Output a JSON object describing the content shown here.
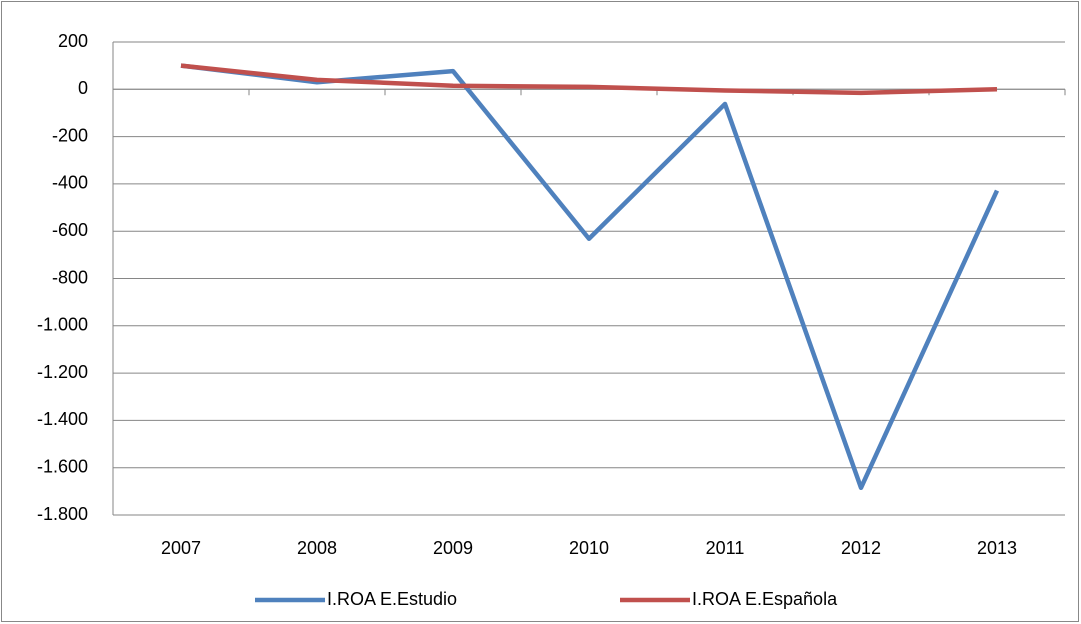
{
  "chart_data": {
    "type": "line",
    "categories": [
      "2007",
      "2008",
      "2009",
      "2010",
      "2011",
      "2012",
      "2013"
    ],
    "series": [
      {
        "name": "I.ROA E.Estudio",
        "color": "#4f81bd",
        "values": [
          100,
          30,
          77,
          -632,
          -62,
          -1685,
          -428
        ]
      },
      {
        "name": "I.ROA E.Española",
        "color": "#c0504d",
        "values": [
          100,
          40,
          15,
          10,
          -5,
          -15,
          0
        ]
      }
    ],
    "ylim": [
      -1800,
      200
    ],
    "yticks": [
      {
        "value": -1800,
        "label": "-1.800"
      },
      {
        "value": -1600,
        "label": "-1.600"
      },
      {
        "value": -1400,
        "label": "-1.400"
      },
      {
        "value": -1200,
        "label": "-1.200"
      },
      {
        "value": -1000,
        "label": "-1.000"
      },
      -800,
      -600,
      -400,
      -200,
      0,
      200
    ],
    "grid": true,
    "legend": "bottom"
  }
}
